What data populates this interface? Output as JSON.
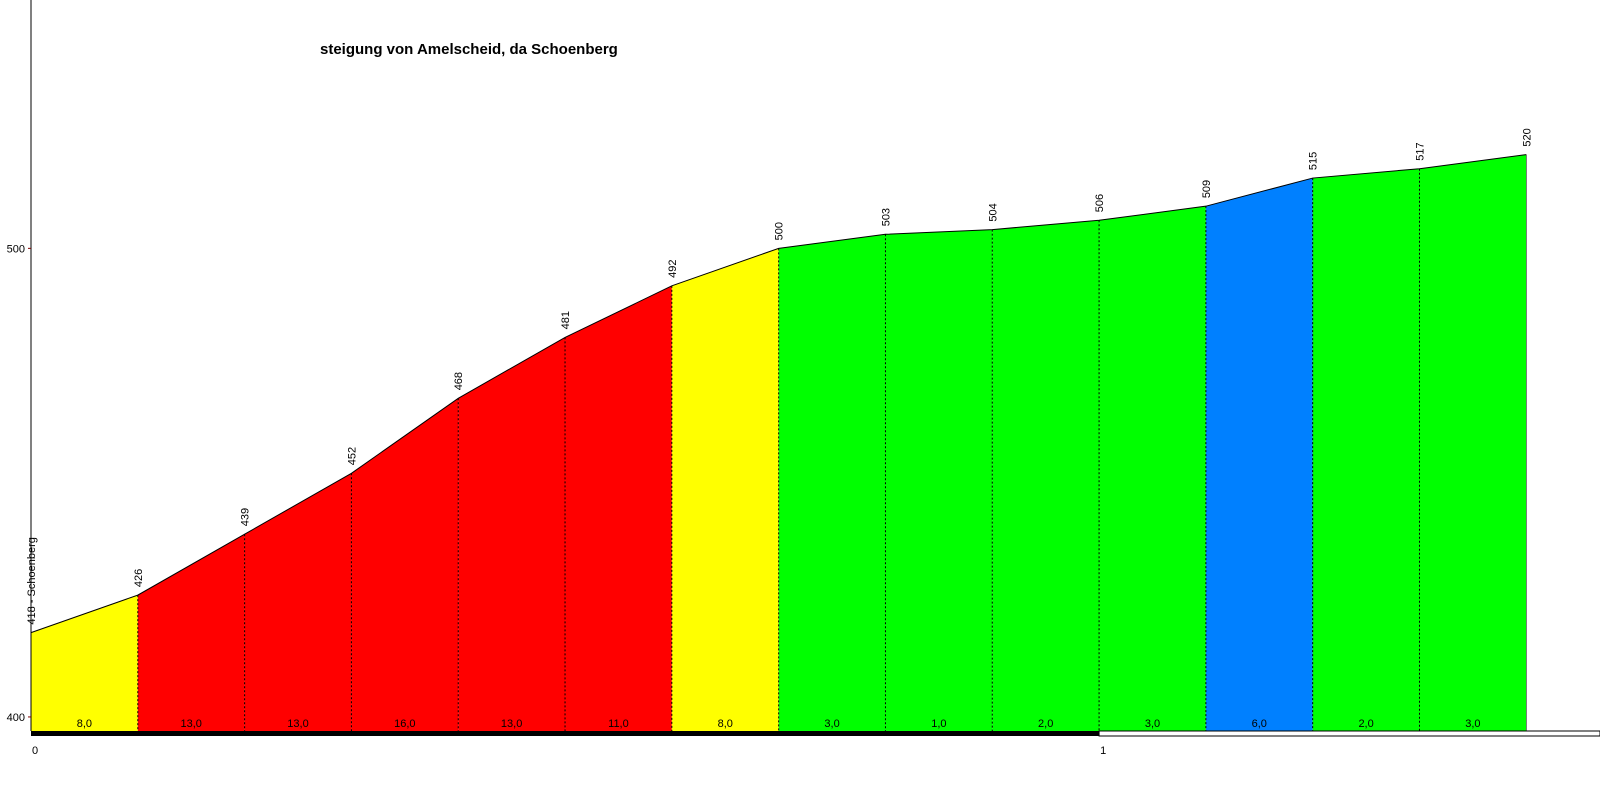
{
  "chart_data": {
    "type": "profile",
    "title": "steigung von Amelscheid, da Schoenberg",
    "x": [
      0,
      0.1,
      0.2,
      0.3,
      0.4,
      0.5,
      0.6,
      0.7,
      0.8,
      0.9,
      1.0,
      1.1,
      1.2,
      1.3,
      1.4
    ],
    "elevation": {
      "values": [
        418,
        426,
        439,
        452,
        468,
        481,
        492,
        500,
        503,
        504,
        506,
        509,
        515,
        517,
        520
      ],
      "value_labels": [
        "418 - Schoenberg",
        "426",
        "439",
        "452",
        "468",
        "481",
        "492",
        "500",
        "503",
        "504",
        "506",
        "509",
        "515",
        "517",
        "520"
      ]
    },
    "segments": {
      "values": [
        8.0,
        13.0,
        13.0,
        16.0,
        13.0,
        11.0,
        8.0,
        3.0,
        1.0,
        2.0,
        3.0,
        6.0,
        2.0,
        3.0
      ],
      "value_labels": [
        "8,0",
        "13,0",
        "13,0",
        "16,0",
        "13,0",
        "11,0",
        "8,0",
        "3,0",
        "1,0",
        "2,0",
        "3,0",
        "6,0",
        "2,0",
        "3,0"
      ],
      "colors": [
        "#ffff00",
        "#ff0000",
        "#ff0000",
        "#ff0000",
        "#ff0000",
        "#ff0000",
        "#ffff00",
        "#00ff00",
        "#00ff00",
        "#00ff00",
        "#00ff00",
        "#0080ff",
        "#00ff00",
        "#00ff00"
      ]
    },
    "xlim": [
      0,
      1.469
    ],
    "xticks": [
      0,
      1
    ],
    "ylim": [
      397,
      553
    ],
    "yticks": [
      400,
      500
    ]
  }
}
